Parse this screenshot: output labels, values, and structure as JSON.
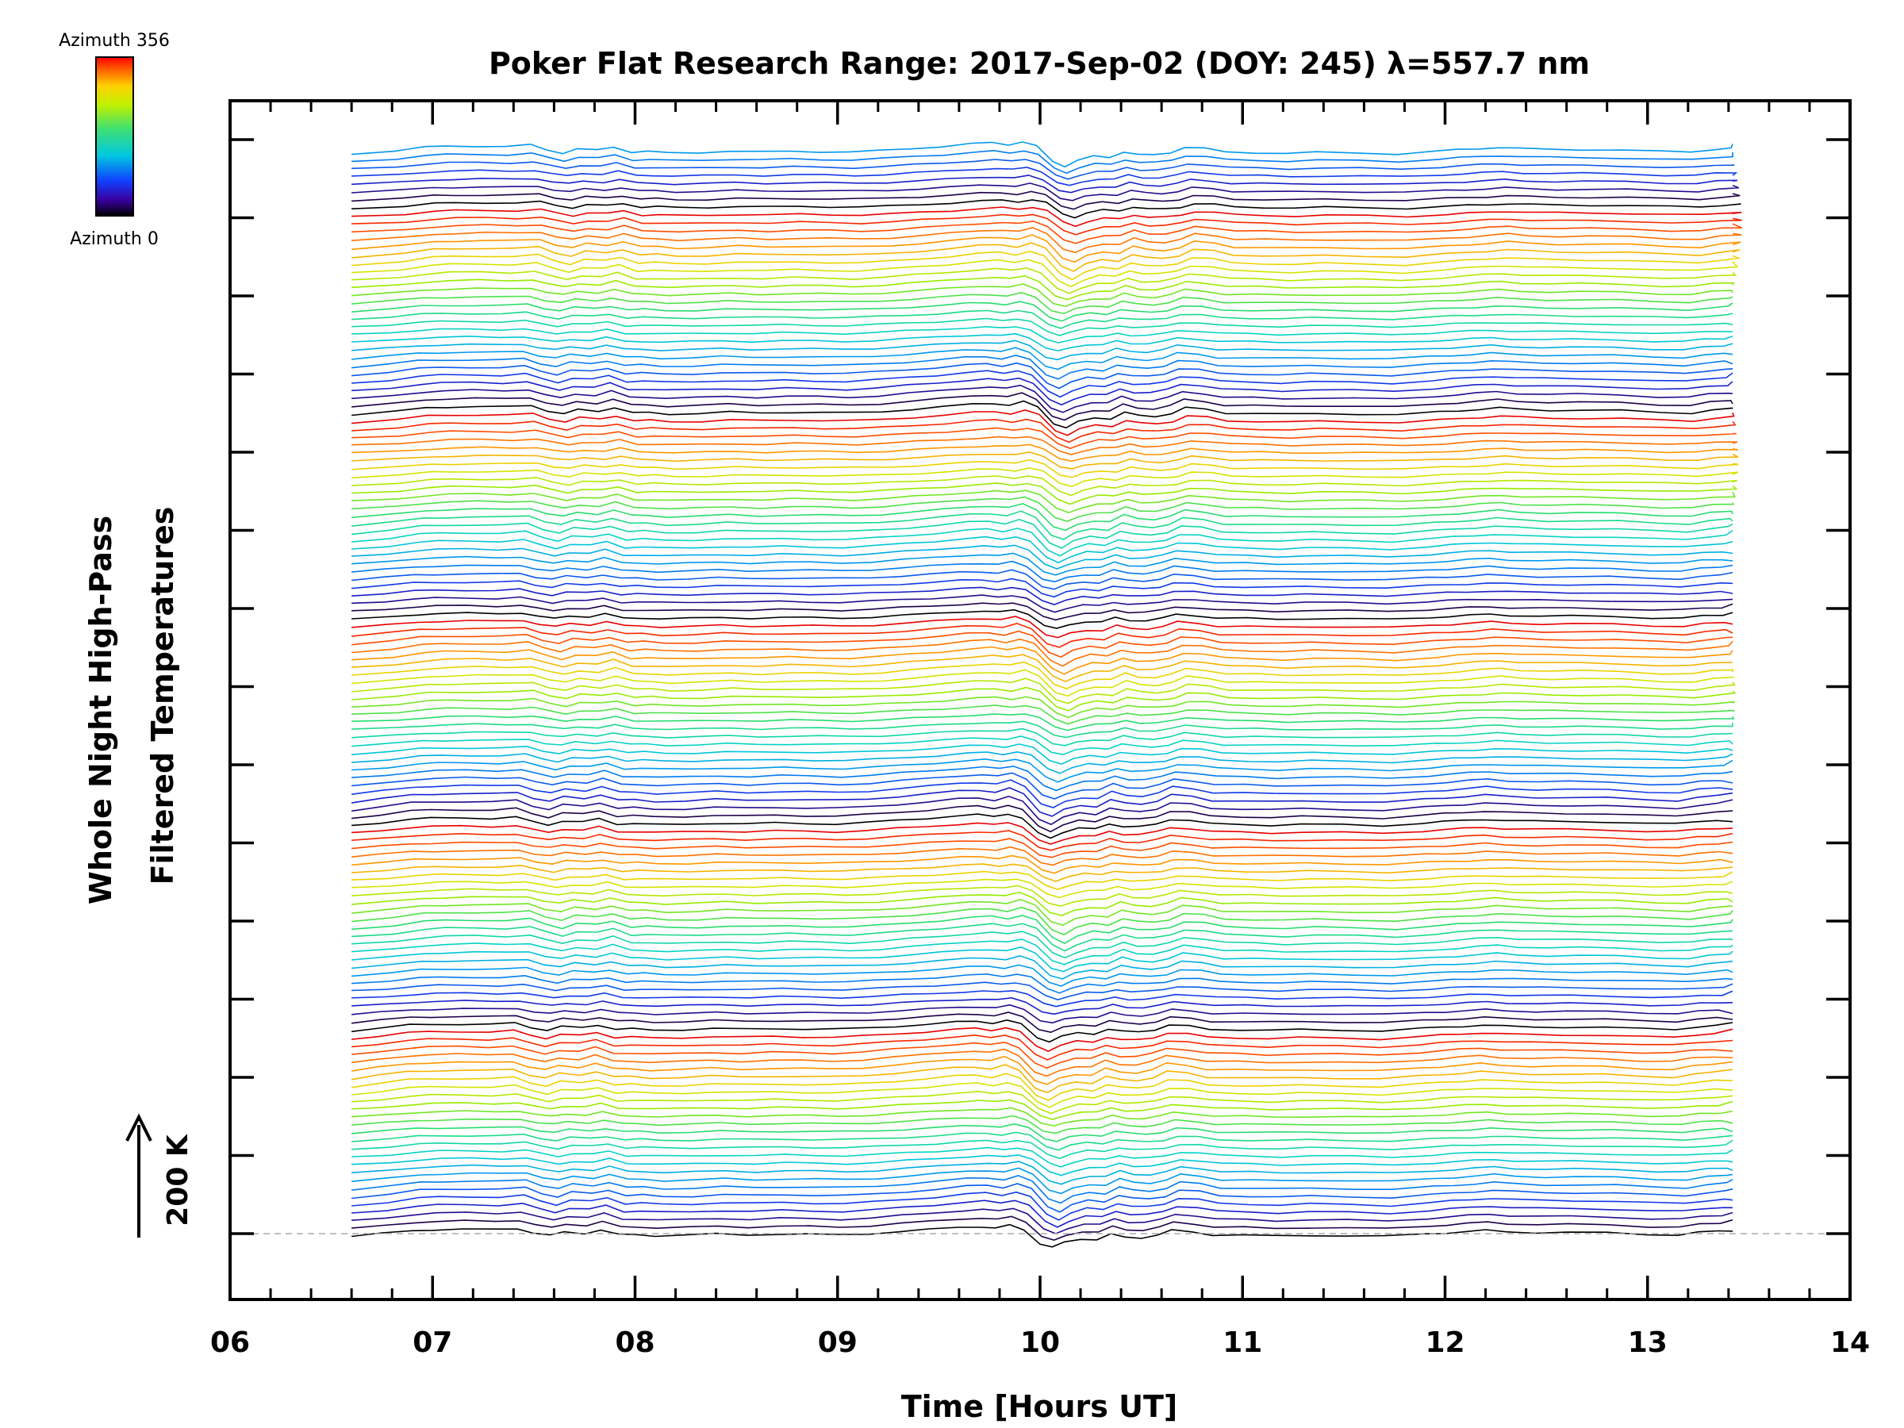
{
  "chart_data": {
    "type": "line",
    "title": "Poker Flat Research Range: 2017-Sep-02 (DOY: 245) λ=557.7 nm",
    "xlabel": "Time [Hours UT]",
    "ylabel_line1": "Whole Night High-Pass",
    "ylabel_line2": "Filtered Temperatures",
    "xlim": [
      6,
      14
    ],
    "x_tick_labels": [
      "06",
      "07",
      "08",
      "09",
      "10",
      "11",
      "12",
      "13",
      "14"
    ],
    "colorbar": {
      "top_label": "Azimuth 356",
      "bottom_label": "Azimuth 0",
      "min": 0,
      "max": 356
    },
    "scale_bar_label": "200 K",
    "grid": false,
    "series_count": 138,
    "series_time_range": [
      6.6,
      13.42
    ],
    "profile_hours": [
      6.6,
      6.75,
      6.9,
      7.0,
      7.15,
      7.3,
      7.42,
      7.5,
      7.58,
      7.65,
      7.75,
      7.83,
      7.92,
      8.0,
      8.1,
      8.25,
      8.4,
      8.55,
      8.7,
      8.85,
      9.0,
      9.15,
      9.3,
      9.45,
      9.6,
      9.7,
      9.78,
      9.85,
      9.92,
      10.0,
      10.06,
      10.12,
      10.2,
      10.28,
      10.35,
      10.42,
      10.5,
      10.58,
      10.65,
      10.75,
      10.85,
      11.0,
      11.15,
      11.3,
      11.5,
      11.7,
      11.9,
      12.0,
      12.1,
      12.2,
      12.3,
      12.45,
      12.6,
      12.8,
      13.0,
      13.15,
      13.25,
      13.35,
      13.42
    ],
    "profile_kelvin": [
      -7,
      0,
      8,
      10,
      11,
      10,
      13,
      2,
      -5,
      4,
      1,
      9,
      -3,
      -2,
      -5,
      -4,
      -1,
      -3,
      -1,
      -2,
      -3,
      0,
      5,
      10,
      16,
      18,
      14,
      21,
      10,
      -25,
      -35,
      -22,
      -13,
      -15,
      -2,
      -9,
      -10,
      -4,
      8,
      5,
      -3,
      -4,
      -6,
      -4,
      -5,
      -7,
      -1,
      2,
      5,
      8,
      5,
      3,
      3,
      2,
      -2,
      -3,
      3,
      6,
      8
    ]
  }
}
